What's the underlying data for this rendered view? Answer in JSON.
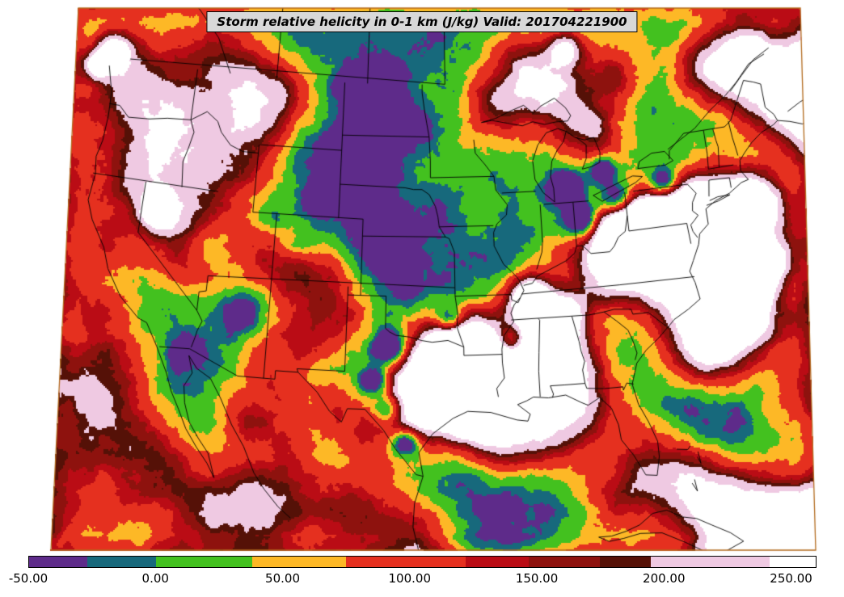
{
  "title": {
    "text": "Storm relative helicity in 0-1 km (J/kg) Valid: 201704221900"
  },
  "chart_data": {
    "type": "heatmap",
    "title": "Storm relative helicity in 0-1 km (J/kg) Valid: 201704221900",
    "variable": "Storm relative helicity in 0-1 km",
    "units": "J/kg",
    "valid": "201704221900",
    "legend_position": "bottom",
    "overlays": [
      "state-boundaries",
      "national-boundaries",
      "coastlines",
      "great-lakes"
    ],
    "colorbar": {
      "orientation": "horizontal",
      "range": [
        -50,
        260
      ],
      "tick_values": [
        -50,
        0,
        50,
        100,
        150,
        200,
        250
      ],
      "tick_labels": [
        "-50.00",
        "0.00",
        "50.00",
        "100.00",
        "150.00",
        "200.00",
        "250.00"
      ],
      "segments": [
        {
          "from": -50,
          "to": -27,
          "color": "#5e2b8a",
          "name": "purple"
        },
        {
          "from": -27,
          "to": 0,
          "color": "#17697c",
          "name": "teal"
        },
        {
          "from": 0,
          "to": 38,
          "color": "#43c11f",
          "name": "green"
        },
        {
          "from": 38,
          "to": 75,
          "color": "#fdb826",
          "name": "orange"
        },
        {
          "from": 75,
          "to": 122,
          "color": "#e5301f",
          "name": "red"
        },
        {
          "from": 122,
          "to": 147,
          "color": "#ba0c15",
          "name": "dark-red"
        },
        {
          "from": 147,
          "to": 175,
          "color": "#8e120e",
          "name": "brick"
        },
        {
          "from": 175,
          "to": 195,
          "color": "#551107",
          "name": "dark-maroon"
        },
        {
          "from": 195,
          "to": 242,
          "color": "#efc9e2",
          "name": "pink"
        },
        {
          "from": 242,
          "to": 260,
          "color": "#ffffff",
          "name": "white"
        }
      ]
    }
  },
  "style": {
    "title_bg": "#d8d8d8",
    "title_border": "#000000",
    "map_outline": "#b36b1e",
    "boundary_color": "#000000",
    "background": "#ffffff"
  }
}
